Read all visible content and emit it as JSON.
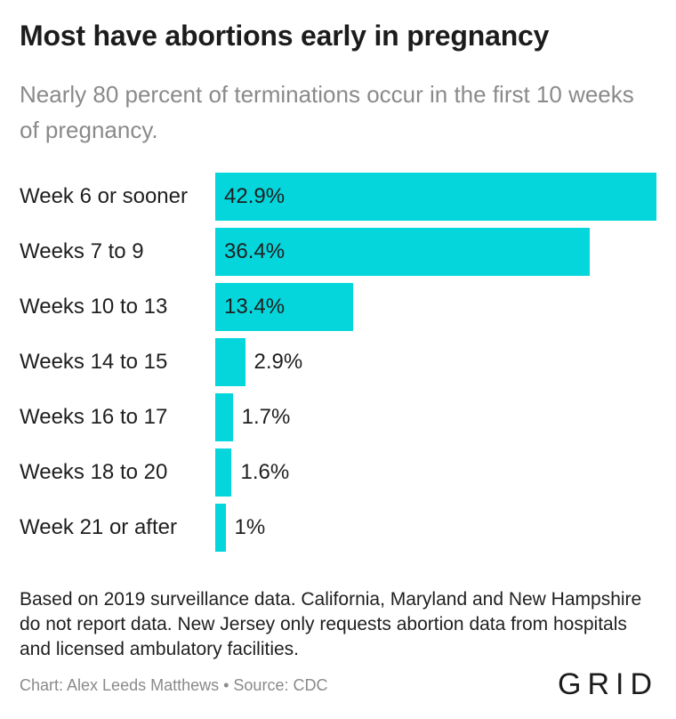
{
  "chart_data": {
    "type": "bar",
    "orientation": "horizontal",
    "title": "Most have abortions early in pregnancy",
    "subtitle": "Nearly 80 percent of terminations occur in the first 10 weeks of pregnancy.",
    "categories": [
      "Week 6 or sooner",
      "Weeks 7 to 9",
      "Weeks 10 to 13",
      "Weeks 14 to 15",
      "Weeks 16 to 17",
      "Weeks 18 to 20",
      "Week 21 or after"
    ],
    "values": [
      42.9,
      36.4,
      13.4,
      2.9,
      1.7,
      1.6,
      1
    ],
    "value_labels": [
      "42.9%",
      "36.4%",
      "13.4%",
      "2.9%",
      "1.7%",
      "1.6%",
      "1%"
    ],
    "xlim": [
      0,
      42.9
    ],
    "grid": false,
    "bar_color": "#05d6dc"
  },
  "footer": {
    "note": "Based on 2019 surveillance data. California, Maryland and New Hampshire do not report data. New Jersey only requests abortion data from hospitals and licensed ambulatory facilities.",
    "credit": "Chart: Alex Leeds Matthews • Source: CDC",
    "logo": "GRID"
  }
}
